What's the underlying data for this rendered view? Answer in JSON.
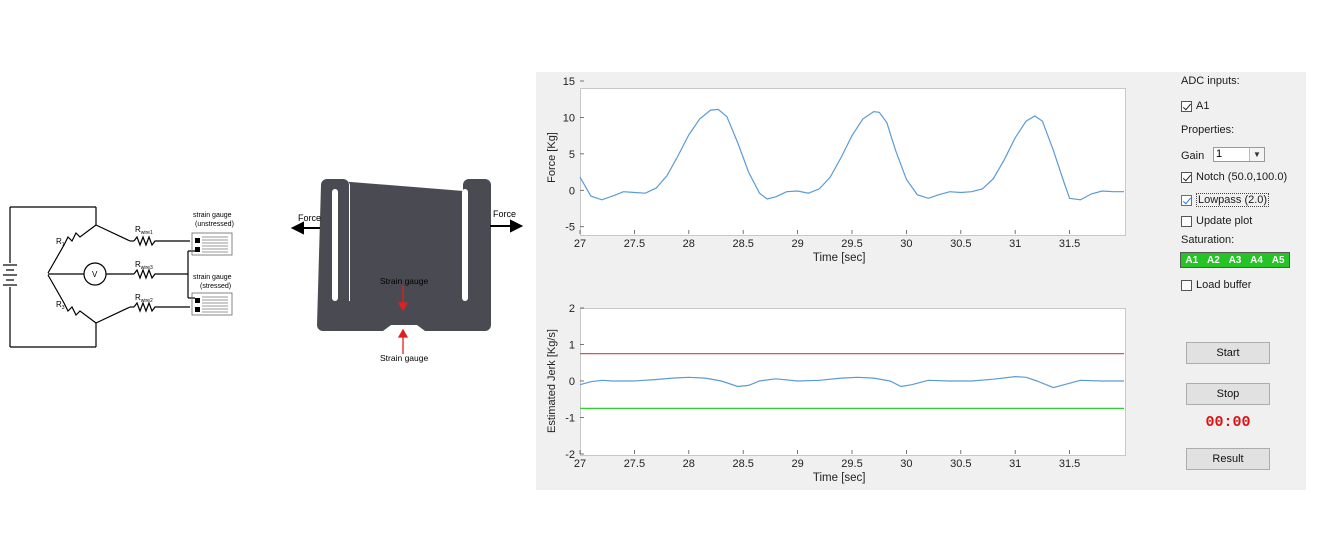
{
  "circuit": {
    "r1": "R",
    "r1_sub": "1",
    "r3": "R",
    "r3_sub": "3",
    "voltmeter": "V",
    "rwire1": "R",
    "rwire1_sub": "wire1",
    "rwire3": "R",
    "rwire3_sub": "wire3",
    "rwire2": "R",
    "rwire2_sub": "wire2",
    "gauge_unstressed_line1": "strain gauge",
    "gauge_unstressed_line2": "(unstressed)",
    "gauge_stressed_line1": "strain gauge",
    "gauge_stressed_line2": "(stressed)"
  },
  "beam": {
    "force_left": "Force",
    "force_right": "Force",
    "strain_top": "Strain gauge",
    "strain_bottom": "Strain gauge",
    "colors": {
      "beam": "#4a4a52",
      "arrow": "#e02020"
    }
  },
  "panel": {
    "adc_label": "ADC inputs:",
    "a1_label": "A1",
    "a1_checked": true,
    "properties_label": "Properties:",
    "gain_label": "Gain",
    "gain_value": "1",
    "notch_label": "Notch (50.0,100.0)",
    "notch_checked": true,
    "lowpass_label": "Lowpass (2.0)",
    "lowpass_checked": true,
    "update_label": "Update plot",
    "update_checked": false,
    "saturation_label": "Saturation:",
    "saturation_channels": [
      "A1",
      "A2",
      "A3",
      "A4",
      "A5"
    ],
    "load_label": "Load buffer",
    "load_checked": false,
    "start_button": "Start",
    "stop_button": "Stop",
    "timer": "00:00",
    "result_button": "Result",
    "colors": {
      "saturation": "#25c325",
      "timer": "#e01010",
      "panel": "#f0f0f0"
    }
  },
  "chart_data": [
    {
      "type": "line",
      "xlabel": "Time [sec]",
      "ylabel": "Force [Kg]",
      "xlim": [
        27,
        32
      ],
      "ylim": [
        -6,
        15
      ],
      "xticks": [
        "27",
        "27.5",
        "28",
        "28.5",
        "29",
        "29.5",
        "30",
        "30.5",
        "31",
        "31.5"
      ],
      "yticks": [
        "15",
        "10",
        "5",
        "0",
        "-5"
      ],
      "grid": false,
      "series": [
        {
          "color": "#5b9bd5",
          "x": [
            27.0,
            27.05,
            27.1,
            27.2,
            27.3,
            27.4,
            27.5,
            27.6,
            27.7,
            27.8,
            27.9,
            28.0,
            28.1,
            28.2,
            28.27,
            28.35,
            28.45,
            28.55,
            28.65,
            28.72,
            28.8,
            28.9,
            29.0,
            29.1,
            29.2,
            29.3,
            29.4,
            29.5,
            29.6,
            29.7,
            29.75,
            29.82,
            29.9,
            30.0,
            30.1,
            30.2,
            30.3,
            30.4,
            30.5,
            30.6,
            30.7,
            30.8,
            30.9,
            31.0,
            31.1,
            31.18,
            31.25,
            31.35,
            31.45,
            31.5,
            31.6,
            31.7,
            31.8,
            31.9,
            32.0
          ],
          "y": [
            1.8,
            0.5,
            -0.8,
            -1.3,
            -0.8,
            -0.2,
            -0.3,
            -0.4,
            0.3,
            2.0,
            4.7,
            7.6,
            9.8,
            11.0,
            11.1,
            10.1,
            6.5,
            2.5,
            -0.4,
            -1.2,
            -0.9,
            -0.2,
            -0.1,
            -0.4,
            0.2,
            1.8,
            4.5,
            7.5,
            9.8,
            10.8,
            10.7,
            9.3,
            5.5,
            1.5,
            -0.6,
            -1.1,
            -0.6,
            -0.2,
            -0.3,
            -0.2,
            0.2,
            1.6,
            4.2,
            7.2,
            9.5,
            10.2,
            9.5,
            5.5,
            1.0,
            -1.1,
            -1.3,
            -0.5,
            -0.1,
            -0.2,
            -0.2
          ]
        }
      ]
    },
    {
      "type": "line",
      "xlabel": "Time [sec]",
      "ylabel": "Estimated Jerk [Kg/s]",
      "xlim": [
        27,
        32
      ],
      "ylim": [
        -2,
        2
      ],
      "xticks": [
        "27",
        "27.5",
        "28",
        "28.5",
        "29",
        "29.5",
        "30",
        "30.5",
        "31",
        "31.5"
      ],
      "yticks": [
        "2",
        "1",
        "0",
        "-1",
        "-2"
      ],
      "grid": false,
      "series": [
        {
          "color": "#5b9bd5",
          "x": [
            27.0,
            27.1,
            27.2,
            27.3,
            27.5,
            27.7,
            27.85,
            28.0,
            28.15,
            28.3,
            28.45,
            28.55,
            28.65,
            28.8,
            29.0,
            29.2,
            29.4,
            29.55,
            29.7,
            29.85,
            29.95,
            30.05,
            30.2,
            30.4,
            30.6,
            30.8,
            31.0,
            31.1,
            31.2,
            31.35,
            31.45,
            31.6,
            31.8,
            32.0
          ],
          "y": [
            -0.1,
            -0.02,
            0.02,
            0.0,
            0.0,
            0.04,
            0.08,
            0.1,
            0.08,
            0.0,
            -0.15,
            -0.12,
            0.0,
            0.06,
            0.0,
            0.02,
            0.08,
            0.1,
            0.08,
            0.0,
            -0.15,
            -0.1,
            0.02,
            0.0,
            0.0,
            0.05,
            0.12,
            0.1,
            0.0,
            -0.18,
            -0.1,
            0.02,
            0.0,
            0.0
          ]
        },
        {
          "color": "#e05050",
          "x": [
            27,
            32
          ],
          "y": [
            0.75,
            0.75
          ]
        },
        {
          "color": "#33cc33",
          "x": [
            27,
            32
          ],
          "y": [
            -0.75,
            -0.75
          ]
        }
      ]
    }
  ]
}
